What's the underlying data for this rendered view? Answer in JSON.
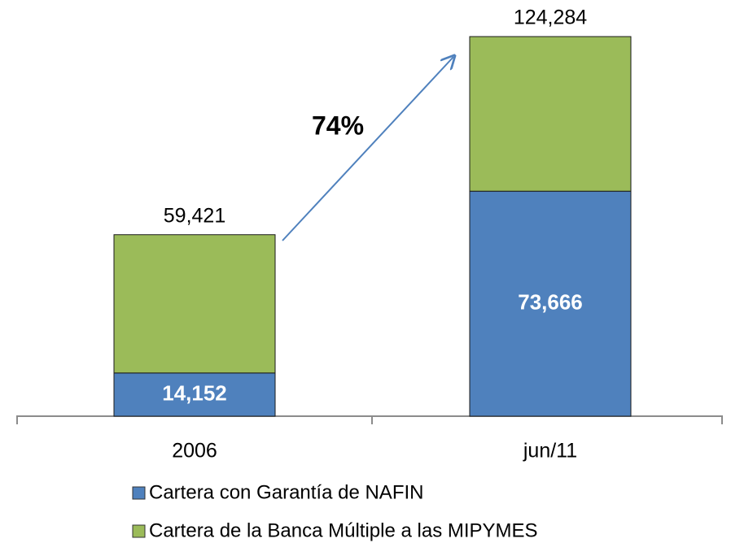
{
  "chart_data": {
    "type": "stacked-bar",
    "categories": [
      "2006",
      "jun/11"
    ],
    "series": [
      {
        "name": "Cartera con Garantía de NAFIN",
        "color": "#4f81bd",
        "values": [
          14152,
          73666
        ],
        "value_labels": [
          "14,152",
          "73,666"
        ]
      },
      {
        "name": "Cartera de la Banca Múltiple a las MIPYMES",
        "color": "#9bbb59",
        "values": [
          45269,
          50618
        ]
      }
    ],
    "totals": [
      59421,
      124284
    ],
    "total_labels": [
      "59,421",
      "124,284"
    ],
    "annotation": "74%"
  }
}
